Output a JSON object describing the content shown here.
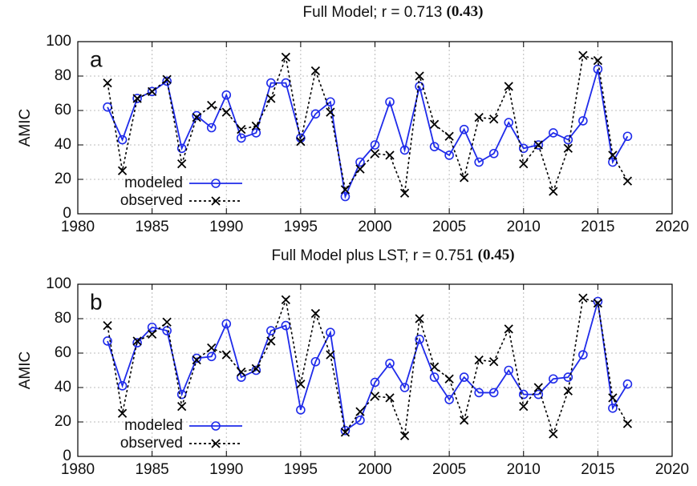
{
  "chart_data": [
    {
      "type": "line",
      "title": "Full Model; r = 0.713",
      "title_emphasis": "(0.43)",
      "panel_label": "a",
      "ylabel": "AMIC",
      "x": [
        1982,
        1983,
        1984,
        1985,
        1986,
        1987,
        1988,
        1989,
        1990,
        1991,
        1992,
        1993,
        1994,
        1995,
        1996,
        1997,
        1998,
        1999,
        2000,
        2001,
        2002,
        2003,
        2004,
        2005,
        2006,
        2007,
        2008,
        2009,
        2010,
        2011,
        2012,
        2013,
        2014,
        2015,
        2016,
        2017
      ],
      "series": [
        {
          "name": "modeled",
          "color": "#1f2bea",
          "marker": "circle",
          "linestyle": "solid",
          "values": [
            62,
            43,
            67,
            71,
            77,
            38,
            57,
            50,
            69,
            44,
            47,
            76,
            76,
            44,
            58,
            65,
            10,
            30,
            40,
            65,
            37,
            74,
            39,
            34,
            49,
            30,
            35,
            53,
            38,
            40,
            47,
            43,
            54,
            84,
            30,
            45
          ]
        },
        {
          "name": "observed",
          "color": "#000000",
          "marker": "x",
          "linestyle": "dashed",
          "values": [
            76,
            25,
            67,
            71,
            78,
            29,
            56,
            63,
            59,
            49,
            51,
            67,
            91,
            42,
            83,
            59,
            14,
            26,
            35,
            34,
            12,
            80,
            52,
            45,
            21,
            56,
            55,
            74,
            29,
            40,
            13,
            38,
            92,
            89,
            34,
            19
          ]
        }
      ],
      "xlim": [
        1980,
        2020
      ],
      "xticks": [
        1980,
        1985,
        1990,
        1995,
        2000,
        2005,
        2010,
        2015,
        2020
      ],
      "ylim": [
        0,
        100
      ],
      "yticks": [
        0,
        20,
        40,
        60,
        80,
        100
      ],
      "grid": true,
      "legend": "lower left"
    },
    {
      "type": "line",
      "title": "Full Model plus LST; r = 0.751",
      "title_emphasis": "(0.45)",
      "panel_label": "b",
      "ylabel": "AMIC",
      "x": [
        1982,
        1983,
        1984,
        1985,
        1986,
        1987,
        1988,
        1989,
        1990,
        1991,
        1992,
        1993,
        1994,
        1995,
        1996,
        1997,
        1998,
        1999,
        2000,
        2001,
        2002,
        2003,
        2004,
        2005,
        2006,
        2007,
        2008,
        2009,
        2010,
        2011,
        2012,
        2013,
        2014,
        2015,
        2016,
        2017
      ],
      "series": [
        {
          "name": "modeled",
          "color": "#1f2bea",
          "marker": "circle",
          "linestyle": "solid",
          "values": [
            67,
            41,
            66,
            75,
            73,
            36,
            57,
            58,
            77,
            46,
            50,
            73,
            76,
            27,
            55,
            72,
            15,
            21,
            43,
            54,
            40,
            68,
            46,
            33,
            46,
            37,
            37,
            50,
            36,
            36,
            45,
            46,
            59,
            90,
            28,
            42
          ]
        },
        {
          "name": "observed",
          "color": "#000000",
          "marker": "x",
          "linestyle": "dashed",
          "values": [
            76,
            25,
            67,
            71,
            78,
            29,
            56,
            63,
            59,
            49,
            51,
            67,
            91,
            42,
            83,
            59,
            14,
            26,
            35,
            34,
            12,
            80,
            52,
            45,
            21,
            56,
            55,
            74,
            29,
            40,
            13,
            38,
            92,
            89,
            34,
            19
          ]
        }
      ],
      "xlim": [
        1980,
        2020
      ],
      "xticks": [
        1980,
        1985,
        1990,
        1995,
        2000,
        2005,
        2010,
        2015,
        2020
      ],
      "ylim": [
        0,
        100
      ],
      "yticks": [
        0,
        20,
        40,
        60,
        80,
        100
      ],
      "grid": true,
      "legend": "lower left"
    }
  ]
}
